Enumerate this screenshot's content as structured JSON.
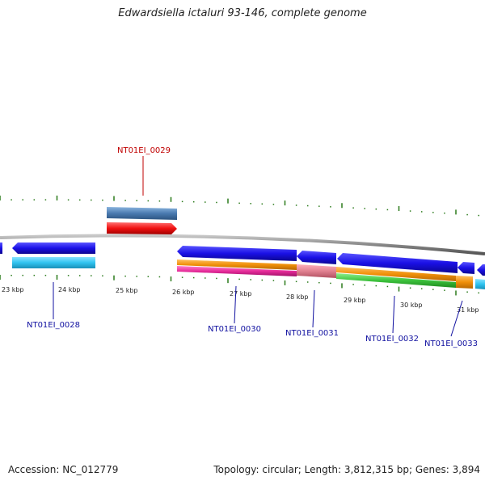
{
  "title": "Edwardsiella ictaluri 93-146, complete genome",
  "footer": {
    "accession_label": "Accession: NC_012779",
    "stats": "Topology: circular; Length: 3,812,315 bp; Genes: 3,894"
  },
  "colors": {
    "backbone": "#888888",
    "tick": "#2a7a1a",
    "cds_blue": "#1a10e6",
    "gene_cyan": "#2fc3f0",
    "orange": "#f0900a",
    "magenta": "#e62c9a",
    "pink": "#e08090",
    "green": "#3cc23c",
    "steelblue": "#4a7ab0",
    "red": "#f01010",
    "label_blue": "#1010a0",
    "label_red": "#c00000"
  },
  "scale_labels": [
    "23 kbp",
    "24 kbp",
    "25 kbp",
    "26 kbp",
    "27 kbp",
    "28 kbp",
    "29 kbp",
    "30 kbp",
    "31 kbp"
  ],
  "gene_labels": [
    {
      "text": "NT01EI_0029",
      "color": "red"
    },
    {
      "text": "NT01EI_0028",
      "color": "blue"
    },
    {
      "text": "NT01EI_0030",
      "color": "blue"
    },
    {
      "text": "NT01EI_0031",
      "color": "blue"
    },
    {
      "text": "NT01EI_0032",
      "color": "blue"
    },
    {
      "text": "NT01EI_0033",
      "color": "blue"
    }
  ]
}
